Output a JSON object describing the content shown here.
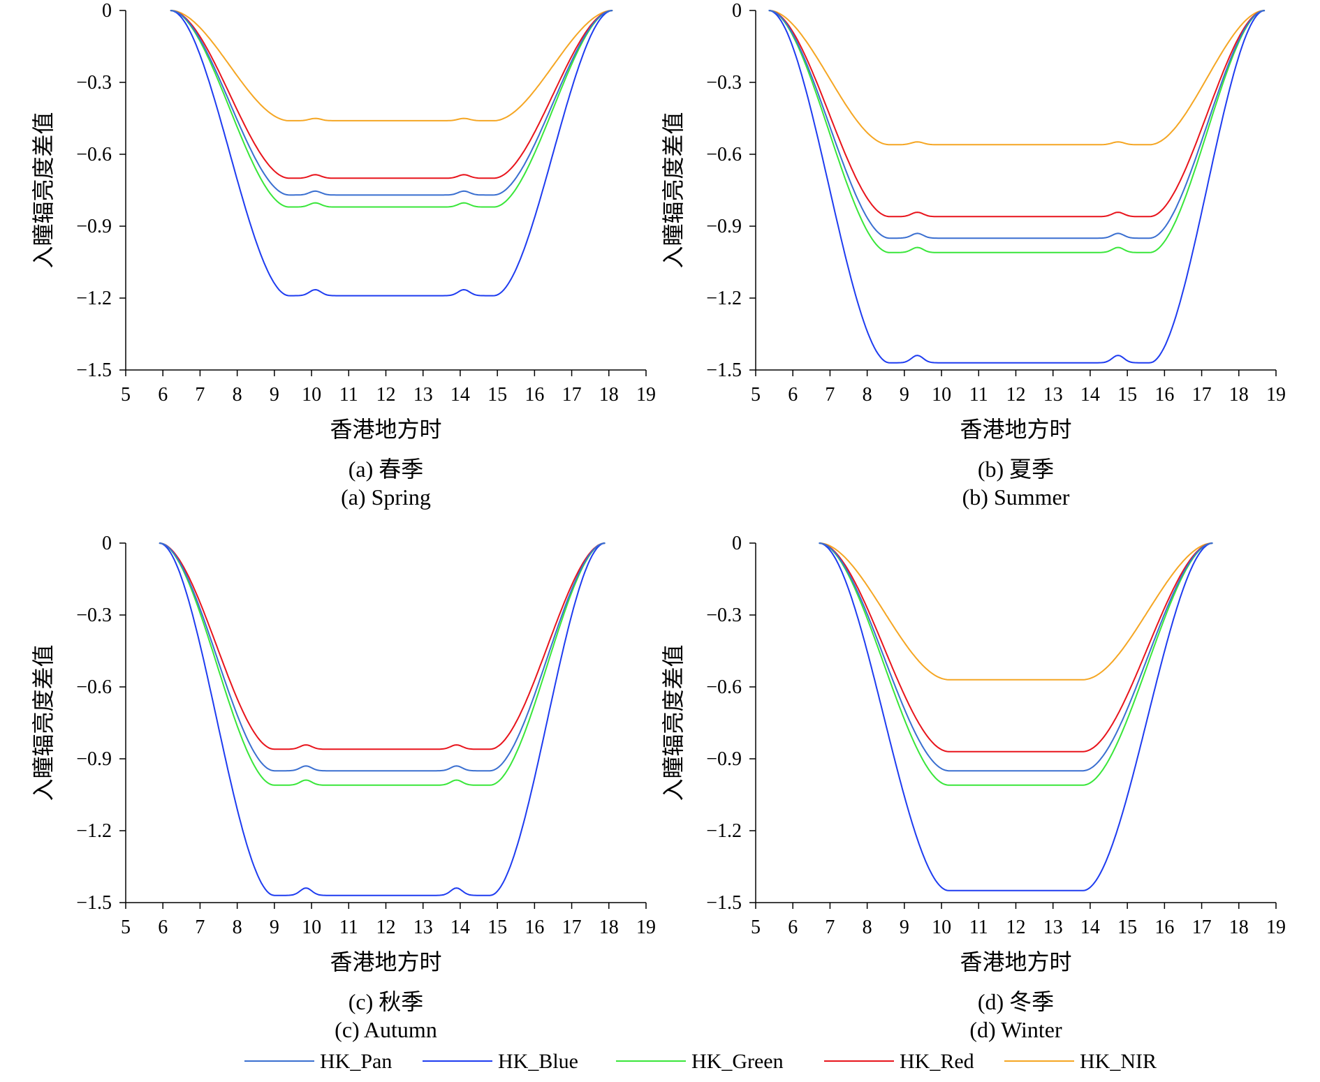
{
  "figure": {
    "legend": [
      {
        "name": "HK_Pan",
        "color": "#3a6fd0"
      },
      {
        "name": "HK_Blue",
        "color": "#1e3cf0"
      },
      {
        "name": "HK_Green",
        "color": "#39e63a"
      },
      {
        "name": "HK_Red",
        "color": "#e8141c"
      },
      {
        "name": "HK_NIR",
        "color": "#f5a623"
      }
    ]
  },
  "chart_data": [
    {
      "type": "line",
      "caption_cn": "(a) 春季",
      "caption_en": "(a) Spring",
      "xlabel": "香港地方时",
      "ylabel": "入瞳辐亮度差值",
      "xlim": [
        5,
        19
      ],
      "ylim": [
        -1.5,
        0
      ],
      "xticks": [
        "5",
        "6",
        "7",
        "8",
        "9",
        "10",
        "11",
        "12",
        "13",
        "14",
        "15",
        "16",
        "17",
        "18",
        "19"
      ],
      "yticks": [
        "0",
        "−0.3",
        "−0.6",
        "−0.9",
        "−1.2",
        "−1.5"
      ],
      "curve": {
        "start": 6.2,
        "end": 18.1,
        "flat_start": 9.4,
        "flat_end": 14.9,
        "bump1": 10.1,
        "bump2": 14.1
      },
      "series": [
        {
          "name": "HK_Pan",
          "color": "#3a6fd0",
          "plateau": -0.77
        },
        {
          "name": "HK_Blue",
          "color": "#1e3cf0",
          "plateau": -1.19
        },
        {
          "name": "HK_Green",
          "color": "#39e63a",
          "plateau": -0.82
        },
        {
          "name": "HK_Red",
          "color": "#e8141c",
          "plateau": -0.7
        },
        {
          "name": "HK_NIR",
          "color": "#f5a623",
          "plateau": -0.46
        }
      ]
    },
    {
      "type": "line",
      "caption_cn": "(b) 夏季",
      "caption_en": "(b) Summer",
      "xlabel": "香港地方时",
      "ylabel": "入瞳辐亮度差值",
      "xlim": [
        5,
        19
      ],
      "ylim": [
        -1.5,
        0
      ],
      "xticks": [
        "5",
        "6",
        "7",
        "8",
        "9",
        "10",
        "11",
        "12",
        "13",
        "14",
        "15",
        "16",
        "17",
        "18",
        "19"
      ],
      "yticks": [
        "0",
        "−0.3",
        "−0.6",
        "−0.9",
        "−1.2",
        "−1.5"
      ],
      "curve": {
        "start": 5.35,
        "end": 18.7,
        "flat_start": 8.6,
        "flat_end": 15.6,
        "bump1": 9.35,
        "bump2": 14.75
      },
      "series": [
        {
          "name": "HK_Pan",
          "color": "#3a6fd0",
          "plateau": -0.95
        },
        {
          "name": "HK_Blue",
          "color": "#1e3cf0",
          "plateau": -1.47
        },
        {
          "name": "HK_Green",
          "color": "#39e63a",
          "plateau": -1.01
        },
        {
          "name": "HK_Red",
          "color": "#e8141c",
          "plateau": -0.86
        },
        {
          "name": "HK_NIR",
          "color": "#f5a623",
          "plateau": -0.56
        }
      ]
    },
    {
      "type": "line",
      "caption_cn": "(c) 秋季",
      "caption_en": "(c) Autumn",
      "xlabel": "香港地方时",
      "ylabel": "入瞳辐亮度差值",
      "xlim": [
        5,
        19
      ],
      "ylim": [
        -1.5,
        0
      ],
      "xticks": [
        "5",
        "6",
        "7",
        "8",
        "9",
        "10",
        "11",
        "12",
        "13",
        "14",
        "15",
        "16",
        "17",
        "18",
        "19"
      ],
      "yticks": [
        "0",
        "−0.3",
        "−0.6",
        "−0.9",
        "−1.2",
        "−1.5"
      ],
      "curve": {
        "start": 5.9,
        "end": 17.9,
        "flat_start": 9.0,
        "flat_end": 14.8,
        "bump1": 9.85,
        "bump2": 13.9
      },
      "series": [
        {
          "name": "HK_Pan",
          "color": "#3a6fd0",
          "plateau": -0.95
        },
        {
          "name": "HK_Blue",
          "color": "#1e3cf0",
          "plateau": -1.47
        },
        {
          "name": "HK_Green",
          "color": "#39e63a",
          "plateau": -1.01
        },
        {
          "name": "HK_Red",
          "color": "#e8141c",
          "plateau": -0.86
        },
        {
          "name": "HK_NIR",
          "color": "#f5a623",
          "plateau": null
        }
      ]
    },
    {
      "type": "line",
      "caption_cn": "(d) 冬季",
      "caption_en": "(d) Winter",
      "xlabel": "香港地方时",
      "ylabel": "入瞳辐亮度差值",
      "xlim": [
        5,
        19
      ],
      "ylim": [
        -1.5,
        0
      ],
      "xticks": [
        "5",
        "6",
        "7",
        "8",
        "9",
        "10",
        "11",
        "12",
        "13",
        "14",
        "15",
        "16",
        "17",
        "18",
        "19"
      ],
      "yticks": [
        "0",
        "−0.3",
        "−0.6",
        "−0.9",
        "−1.2",
        "−1.5"
      ],
      "curve": {
        "start": 6.7,
        "end": 17.3,
        "flat_start": 10.2,
        "flat_end": 13.8,
        "bump1": null,
        "bump2": null
      },
      "series": [
        {
          "name": "HK_Pan",
          "color": "#3a6fd0",
          "plateau": -0.95
        },
        {
          "name": "HK_Blue",
          "color": "#1e3cf0",
          "plateau": -1.45
        },
        {
          "name": "HK_Green",
          "color": "#39e63a",
          "plateau": -1.01
        },
        {
          "name": "HK_Red",
          "color": "#e8141c",
          "plateau": -0.87
        },
        {
          "name": "HK_NIR",
          "color": "#f5a623",
          "plateau": -0.57
        }
      ]
    }
  ]
}
